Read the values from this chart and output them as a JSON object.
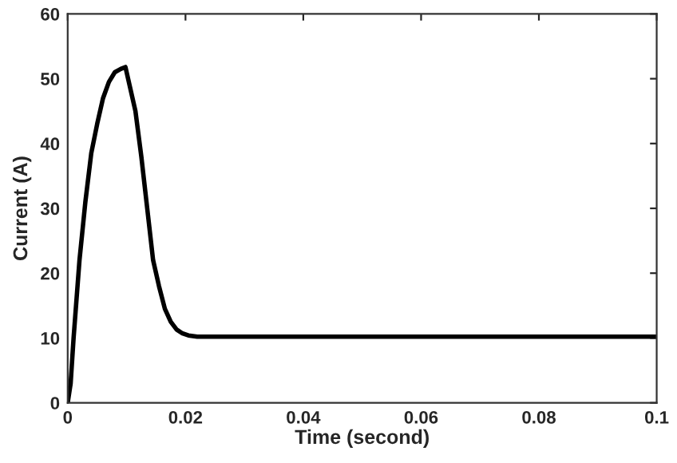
{
  "chart_data": {
    "type": "line",
    "xlabel": "Time (second)",
    "ylabel": "Current (A)",
    "xlim": [
      0,
      0.1
    ],
    "xticks": [
      0,
      0.02,
      0.04,
      0.06,
      0.08,
      0.1
    ],
    "ylim": [
      0,
      60
    ],
    "yticks": [
      0,
      10,
      20,
      30,
      40,
      50,
      60
    ],
    "grid": false,
    "line_style": "solid",
    "series": [
      {
        "color": "#000000",
        "x": [
          0,
          0.0005,
          0.001,
          0.002,
          0.003,
          0.004,
          0.005,
          0.006,
          0.007,
          0.008,
          0.009,
          0.0098,
          0.0105,
          0.0115,
          0.0125,
          0.0135,
          0.0145,
          0.0155,
          0.0165,
          0.0175,
          0.0185,
          0.0195,
          0.0205,
          0.022,
          0.025,
          0.04,
          0.06,
          0.08,
          0.1
        ],
        "values": [
          0,
          3,
          10,
          22,
          31,
          38.5,
          43,
          47,
          49.5,
          51,
          51.5,
          51.8,
          49,
          45,
          38,
          30,
          22,
          18,
          14.5,
          12.5,
          11.3,
          10.7,
          10.4,
          10.2,
          10.2,
          10.2,
          10.2,
          10.2,
          10.2
        ]
      }
    ]
  }
}
